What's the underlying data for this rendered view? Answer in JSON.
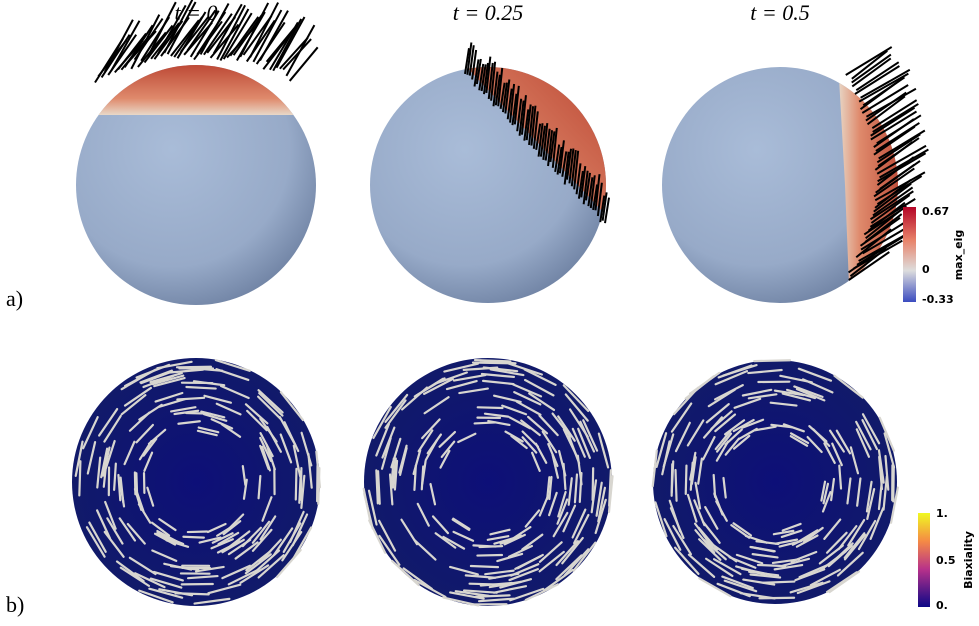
{
  "header": {
    "titles": [
      "t = 0",
      "t = 0.25",
      "t = 0.5"
    ]
  },
  "panels": {
    "a": "a)",
    "b": "b)"
  },
  "colorbar_a": {
    "label": "max_eig",
    "ticks": [
      "0.67",
      "0",
      "-0.33"
    ]
  },
  "colorbar_b": {
    "label": "Biaxiality",
    "ticks": [
      "1.",
      "0.5",
      "0."
    ]
  }
}
